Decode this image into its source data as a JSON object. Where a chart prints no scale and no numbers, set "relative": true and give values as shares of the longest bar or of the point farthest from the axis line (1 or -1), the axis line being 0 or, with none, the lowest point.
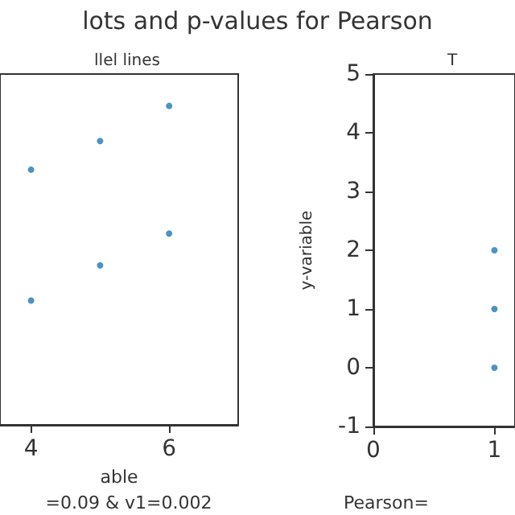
{
  "chart_data": [
    {
      "type": "scatter",
      "title": "lots and p-values for Pearson",
      "subtitle": "llel lines",
      "xlabel": "able",
      "annotations": [
        "=0.09 & v1=0.002"
      ],
      "relative": true,
      "x": [
        4,
        5,
        6,
        4,
        5,
        6
      ],
      "xlim": [
        3.55,
        7
      ],
      "xticks": [
        4,
        6
      ],
      "grid": false,
      "marker": "circle",
      "series": [
        {
          "color": "#1f77b4",
          "values": [
            0.8,
            0.89,
            1,
            0.39,
            0.5,
            0.6
          ]
        }
      ],
      "tick_labels": "x"
    },
    {
      "type": "scatter",
      "subtitle": "T",
      "ylabel": "y-variable",
      "annotations": [
        "Pearson="
      ],
      "x": [
        1,
        1,
        1
      ],
      "xlim": [
        0,
        1.17
      ],
      "xticks": [
        0,
        1
      ],
      "ylim": [
        -1,
        5
      ],
      "yticks": [
        -1,
        0,
        1,
        2,
        3,
        4,
        5
      ],
      "grid": false,
      "marker": "circle",
      "series": [
        {
          "color": "#1f77b4",
          "values": [
            0,
            1,
            2
          ]
        }
      ]
    }
  ]
}
